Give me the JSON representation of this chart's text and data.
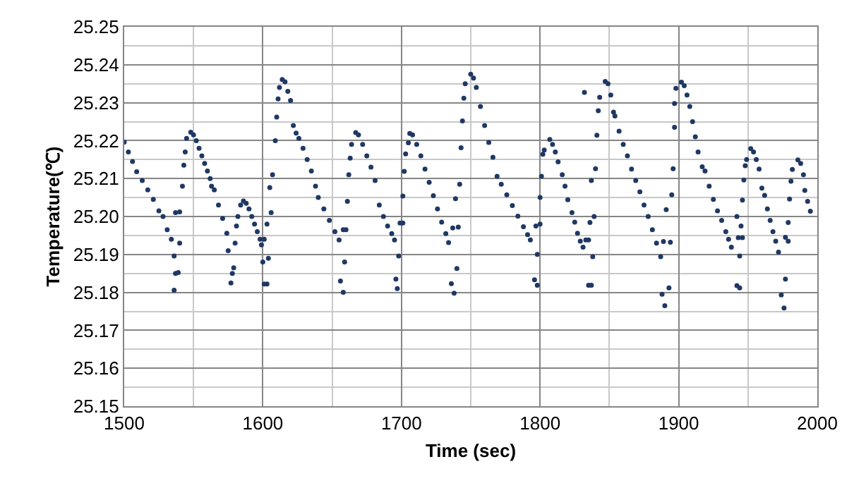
{
  "chart_data": {
    "type": "scatter",
    "xlabel": "Time (sec)",
    "ylabel": "Temperature(℃)",
    "xlim": [
      1500,
      2000
    ],
    "xticks": [
      1500,
      1600,
      1700,
      1800,
      1900,
      2000
    ],
    "ylim": [
      25.15,
      25.25
    ],
    "yticks": [
      {
        "value": 25.15,
        "label": "25.15"
      },
      {
        "value": 25.16,
        "label": "25.16"
      },
      {
        "value": 25.17,
        "label": "25.17"
      },
      {
        "value": 25.18,
        "label": "25.18"
      },
      {
        "value": 25.19,
        "label": "25.19"
      },
      {
        "value": 25.2,
        "label": "25.20"
      },
      {
        "value": 25.21,
        "label": "25.21"
      },
      {
        "value": 25.22,
        "label": "25.22"
      },
      {
        "value": 25.23,
        "label": "25.23"
      },
      {
        "value": 25.24,
        "label": "25.24"
      },
      {
        "value": 25.25,
        "label": "25.25"
      }
    ],
    "grid": true,
    "marker": "circle",
    "series": [
      {
        "color": "#1f3864",
        "x": [
          1500,
          1503,
          1506,
          1509,
          1513,
          1517,
          1521,
          1525,
          1528,
          1531,
          1534,
          1536,
          1536,
          1537,
          1539,
          1537,
          1540,
          1540,
          1542,
          1543,
          1544,
          1545,
          1548,
          1550,
          1552,
          1554,
          1556,
          1558,
          1560,
          1562,
          1563,
          1565,
          1568,
          1571,
          1574,
          1575,
          1577,
          1578,
          1579,
          1580,
          1581,
          1582,
          1584,
          1586,
          1588,
          1590,
          1592,
          1594,
          1596,
          1598,
          1599,
          1600,
          1601,
          1603,
          1601,
          1603,
          1604,
          1606,
          1605,
          1607,
          1609,
          1610,
          1611,
          1612,
          1614,
          1616,
          1618,
          1620,
          1622,
          1624,
          1626,
          1629,
          1632,
          1635,
          1638,
          1640,
          1644,
          1648,
          1652,
          1655,
          1658,
          1660,
          1659,
          1656,
          1658,
          1661,
          1662,
          1663,
          1664,
          1667,
          1669,
          1672,
          1675,
          1678,
          1681,
          1684,
          1687,
          1690,
          1693,
          1695,
          1699,
          1701,
          1698,
          1696,
          1697,
          1701,
          1702,
          1703,
          1705,
          1706,
          1708,
          1711,
          1714,
          1717,
          1720,
          1723,
          1726,
          1729,
          1732,
          1734,
          1737,
          1741,
          1736,
          1738,
          1740,
          1739,
          1742,
          1743,
          1744,
          1745,
          1746,
          1750,
          1752,
          1754,
          1757,
          1760,
          1763,
          1766,
          1769,
          1772,
          1776,
          1780,
          1784,
          1788,
          1791,
          1793,
          1800,
          1797,
          1796,
          1798,
          1798,
          1800,
          1801,
          1802,
          1803,
          1807,
          1809,
          1811,
          1813,
          1816,
          1818,
          1820,
          1823,
          1825,
          1827,
          1829,
          1831,
          1833,
          1835,
          1835,
          1837,
          1838,
          1836,
          1839,
          1837,
          1840,
          1841,
          1842,
          1843,
          1832,
          1847,
          1849,
          1851,
          1853,
          1854,
          1857,
          1860,
          1863,
          1866,
          1869,
          1872,
          1875,
          1878,
          1881,
          1884,
          1887,
          1889,
          1894,
          1888,
          1893,
          1890,
          1891,
          1895,
          1896,
          1897,
          1897,
          1898,
          1902,
          1904,
          1906,
          1908,
          1910,
          1912,
          1914,
          1917,
          1919,
          1922,
          1925,
          1928,
          1931,
          1934,
          1936,
          1938,
          1943,
          1946,
          1942,
          1944,
          1944,
          1942,
          1945,
          1946,
          1947,
          1948,
          1949,
          1952,
          1954,
          1956,
          1958,
          1960,
          1962,
          1964,
          1966,
          1968,
          1970,
          1972,
          1977,
          1979,
          1977,
          1974,
          1976,
          1979,
          1980,
          1981,
          1982,
          1986,
          1988,
          1990,
          1991,
          1993,
          1995
        ],
        "values": [
          25.2196,
          25.217,
          25.2145,
          25.2118,
          25.2095,
          25.207,
          25.2045,
          25.2015,
          25.2,
          25.1965,
          25.194,
          25.1896,
          25.1806,
          25.185,
          25.1852,
          25.201,
          25.2012,
          25.193,
          25.208,
          25.2135,
          25.217,
          25.2206,
          25.2222,
          25.2215,
          25.22,
          25.218,
          25.216,
          25.214,
          25.212,
          25.21,
          25.208,
          25.207,
          25.203,
          25.1995,
          25.1956,
          25.191,
          25.1825,
          25.185,
          25.1865,
          25.193,
          25.1975,
          25.2,
          25.203,
          25.2041,
          25.2035,
          25.202,
          25.2,
          25.198,
          25.196,
          25.194,
          25.1925,
          25.188,
          25.1822,
          25.1822,
          25.194,
          25.198,
          25.189,
          25.201,
          25.2076,
          25.211,
          25.22,
          25.2262,
          25.231,
          25.234,
          25.2361,
          25.2355,
          25.233,
          25.2306,
          25.224,
          25.222,
          25.2206,
          25.218,
          25.215,
          25.212,
          25.208,
          25.205,
          25.202,
          25.199,
          25.196,
          25.1938,
          25.1965,
          25.1965,
          25.188,
          25.183,
          25.18,
          25.204,
          25.211,
          25.2154,
          25.219,
          25.2221,
          25.2215,
          25.219,
          25.216,
          25.213,
          25.2095,
          25.203,
          25.2,
          25.1975,
          25.1955,
          25.1938,
          25.1983,
          25.1983,
          25.1896,
          25.1835,
          25.181,
          25.2054,
          25.2119,
          25.2165,
          25.2194,
          25.2219,
          25.2215,
          25.219,
          25.216,
          25.2125,
          25.209,
          25.2055,
          25.202,
          25.1985,
          25.1955,
          25.1931,
          25.197,
          25.1972,
          25.1823,
          25.1798,
          25.1863,
          25.2047,
          25.2085,
          25.2181,
          25.2252,
          25.2312,
          25.235,
          25.2375,
          25.2365,
          25.234,
          25.229,
          25.224,
          25.2195,
          25.2156,
          25.2106,
          25.2085,
          25.2057,
          25.2029,
          25.2001,
          25.1973,
          25.1952,
          25.1938,
          25.198,
          25.1975,
          25.1833,
          25.1819,
          25.19,
          25.205,
          25.2106,
          25.2164,
          25.2175,
          25.2203,
          25.219,
          25.217,
          25.2144,
          25.211,
          25.208,
          25.2044,
          25.201,
          25.1985,
          25.1956,
          25.1935,
          25.1919,
          25.1938,
          25.1938,
          25.1819,
          25.1819,
          25.1894,
          25.1984,
          25.2,
          25.2095,
          25.2126,
          25.2214,
          25.2279,
          25.2314,
          25.2327,
          25.2356,
          25.235,
          25.232,
          25.2275,
          25.2265,
          25.2225,
          25.219,
          25.216,
          25.2125,
          25.2095,
          25.2065,
          25.203,
          25.2,
          25.1965,
          25.193,
          25.1894,
          25.1934,
          25.1932,
          25.1795,
          25.1812,
          25.1765,
          25.2018,
          25.2057,
          25.2126,
          25.2235,
          25.2298,
          25.2338,
          25.2354,
          25.2345,
          25.232,
          25.229,
          25.225,
          25.221,
          25.217,
          25.2131,
          25.212,
          25.208,
          25.2045,
          25.2015,
          25.199,
          25.196,
          25.194,
          25.1919,
          25.1944,
          25.1944,
          25.1818,
          25.1812,
          25.1896,
          25.2,
          25.1975,
          25.2043,
          25.2096,
          25.2134,
          25.215,
          25.2179,
          25.217,
          25.215,
          25.2125,
          25.2075,
          25.2056,
          25.202,
          25.199,
          25.196,
          25.1935,
          25.1906,
          25.1945,
          25.1935,
          25.1835,
          25.1793,
          25.1759,
          25.1984,
          25.2046,
          25.2093,
          25.2124,
          25.2149,
          25.214,
          25.211,
          25.2069,
          25.204,
          25.2014
        ]
      }
    ]
  }
}
